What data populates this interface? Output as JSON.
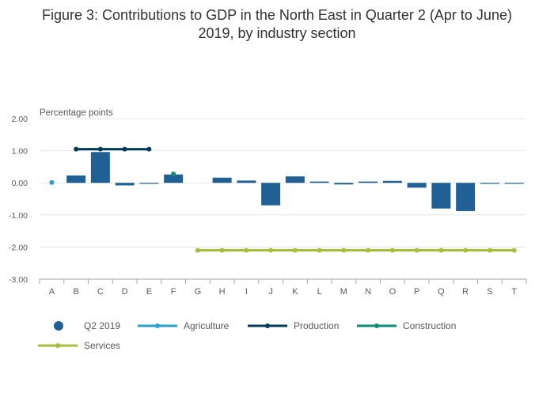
{
  "title_line1": "Figure 3: Contributions to GDP in the North East in Quarter 2 (Apr to June)",
  "title_line2": "2019, by industry section",
  "colors": {
    "q2": "#206095",
    "agriculture": "#27A0CC",
    "production": "#003C57",
    "construction": "#118C7B",
    "services": "#A8BD3A",
    "grid": "#e6e6e6",
    "axis": "#a6a6a6"
  },
  "chart_data": {
    "type": "bar",
    "ylabel": "Percentage points",
    "ylim": [
      -3.0,
      2.0
    ],
    "yticks": [
      "2.00",
      "1.00",
      "0.00",
      "-1.00",
      "-2.00",
      "-3.00"
    ],
    "ytick_values": [
      2,
      1,
      0,
      -1,
      -2,
      -3
    ],
    "categories": [
      "A",
      "B",
      "C",
      "D",
      "E",
      "F",
      "G",
      "H",
      "I",
      "J",
      "K",
      "L",
      "M",
      "N",
      "O",
      "P",
      "Q",
      "R",
      "S",
      "T"
    ],
    "legend": "bottom",
    "series": [
      {
        "name": "Q2 2019",
        "kind": "bar",
        "values": [
          0.0,
          0.23,
          0.96,
          -0.08,
          -0.03,
          0.26,
          0.0,
          0.16,
          0.07,
          -0.7,
          0.2,
          0.04,
          -0.05,
          0.04,
          0.06,
          -0.15,
          -0.8,
          -0.88,
          -0.02,
          -0.02
        ]
      },
      {
        "name": "Agriculture",
        "kind": "line",
        "points": [
          {
            "x": "A",
            "y": 0.01
          }
        ]
      },
      {
        "name": "Production",
        "kind": "line",
        "points": [
          {
            "x": "B",
            "y": 1.05
          },
          {
            "x": "C",
            "y": 1.05
          },
          {
            "x": "D",
            "y": 1.05
          },
          {
            "x": "E",
            "y": 1.05
          }
        ]
      },
      {
        "name": "Construction",
        "kind": "line",
        "points": [
          {
            "x": "F",
            "y": 0.28
          }
        ]
      },
      {
        "name": "Services",
        "kind": "line",
        "points": [
          {
            "x": "G",
            "y": -2.1
          },
          {
            "x": "H",
            "y": -2.1
          },
          {
            "x": "I",
            "y": -2.1
          },
          {
            "x": "J",
            "y": -2.1
          },
          {
            "x": "K",
            "y": -2.1
          },
          {
            "x": "L",
            "y": -2.1
          },
          {
            "x": "M",
            "y": -2.1
          },
          {
            "x": "N",
            "y": -2.1
          },
          {
            "x": "O",
            "y": -2.1
          },
          {
            "x": "P",
            "y": -2.1
          },
          {
            "x": "Q",
            "y": -2.1
          },
          {
            "x": "R",
            "y": -2.1
          },
          {
            "x": "S",
            "y": -2.1
          },
          {
            "x": "T",
            "y": -2.1
          }
        ]
      }
    ]
  }
}
